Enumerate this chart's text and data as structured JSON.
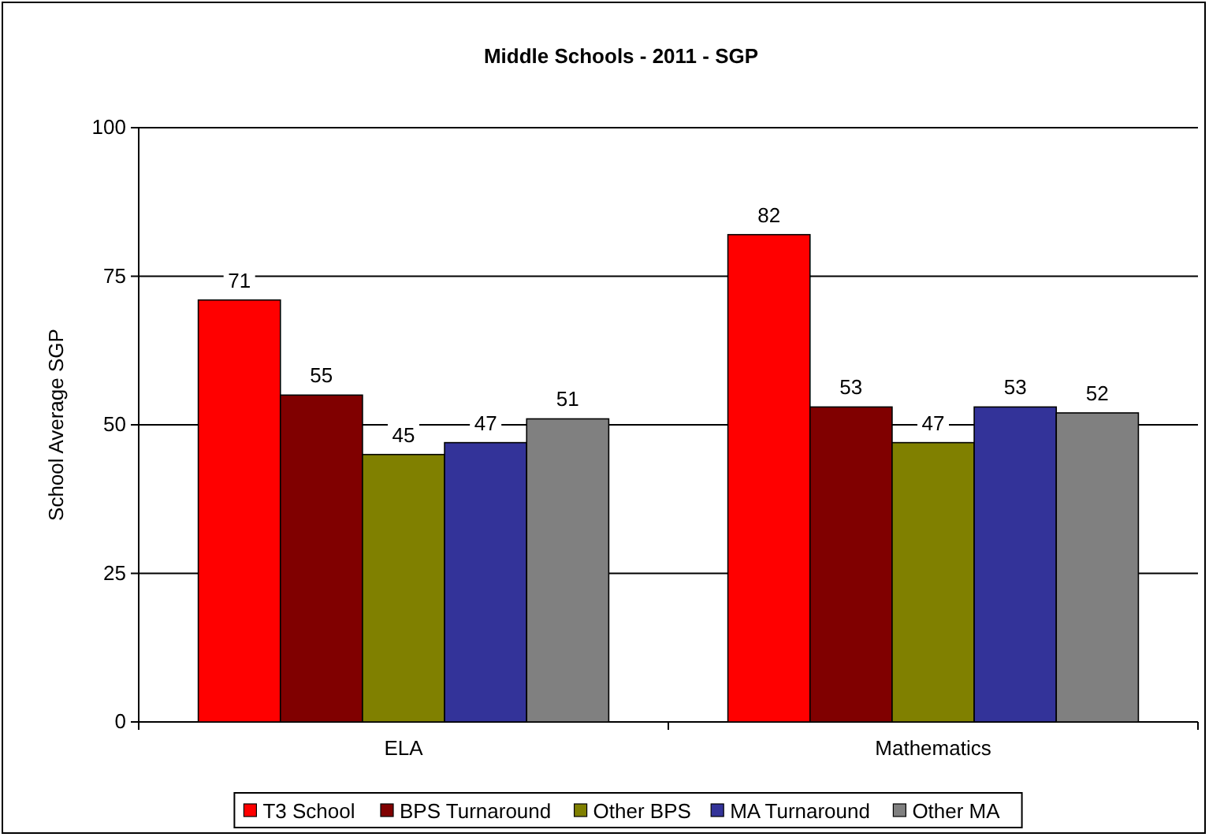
{
  "chart_data": {
    "type": "bar",
    "title": "Middle Schools - 2011 - SGP",
    "ylabel": "School Average SGP",
    "categories": [
      "ELA",
      "Mathematics"
    ],
    "series": [
      {
        "name": "T3 School",
        "color": "#ff0000",
        "values": [
          71,
          82
        ]
      },
      {
        "name": "BPS Turnaround",
        "color": "#800000",
        "values": [
          55,
          53
        ]
      },
      {
        "name": "Other BPS",
        "color": "#808000",
        "values": [
          45,
          47
        ]
      },
      {
        "name": "MA Turnaround",
        "color": "#333399",
        "values": [
          47,
          53
        ]
      },
      {
        "name": "Other MA",
        "color": "#808080",
        "values": [
          51,
          52
        ]
      }
    ],
    "ylim": [
      0,
      100
    ],
    "yticks": [
      0,
      25,
      50,
      75,
      100
    ],
    "grid": "y",
    "legend": "bottom",
    "data_labels": true
  }
}
